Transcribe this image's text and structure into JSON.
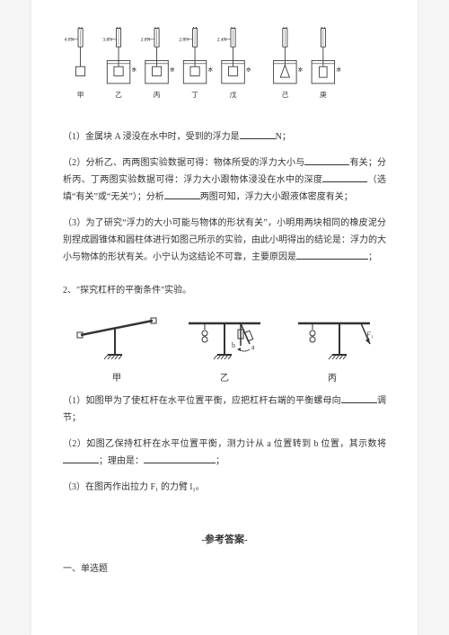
{
  "buoyancy_figure": {
    "units": [
      {
        "reading": "4.8N",
        "label": "甲",
        "has_water": false,
        "block": "rect"
      },
      {
        "reading": "3.8N",
        "label": "乙",
        "has_water": true,
        "block": "rect",
        "liquid_label": "水"
      },
      {
        "reading": "2.8N",
        "label": "丙",
        "has_water": true,
        "block": "rect",
        "liquid_label": "水"
      },
      {
        "reading": "2.8N",
        "label": "丁",
        "has_water": true,
        "block": "rect",
        "liquid_label": "水"
      },
      {
        "reading": "2.4N",
        "label": "戊",
        "has_water": true,
        "block": "rect",
        "liquid_label": "水"
      },
      {
        "reading": "",
        "label": "己",
        "has_water": true,
        "block": "cone",
        "liquid_label": "水"
      },
      {
        "reading": "",
        "label": "庚",
        "has_water": true,
        "block": "cyl",
        "liquid_label": "水"
      }
    ],
    "colors": {
      "line": "#555",
      "water": "#ffffff"
    }
  },
  "q1_1": {
    "text_a": "（1）金属块 A 浸没在水中时，受到的浮力是",
    "text_b": "N；"
  },
  "q1_2": {
    "text_a": "（2）分析乙、丙两图实验数据可得：物体所受的浮力大小与",
    "text_b": "有关；分析丙、丁两图实验数据可得：浮力大小跟物体浸没在水中的深度",
    "text_c": "（选填“有关”或“无关”）；分析",
    "text_d": "两图可知，浮力大小跟液体密度有关；"
  },
  "q1_3": {
    "text_a": "（3）为了研究“浮力的大小可能与物体的形状有关”，小明用两块相同的橡皮泥分别捏成圆锥体和圆柱体进行如图己所示的实验，由此小明得出的结论是：浮力的大小与物体的形状有关。小宁认为这结论不可靠，主要原因是",
    "text_b": "；"
  },
  "q2_title": "2、\"探究杠杆的平衡条件\"实验。",
  "lever_figure": {
    "labels": [
      "甲",
      "乙",
      "丙"
    ],
    "markers": {
      "a": "a",
      "b": "b",
      "F": "F₁"
    }
  },
  "q2_1": {
    "text_a": "（1）如图甲为了使杠杆在水平位置平衡，应把杠杆右端的平衡螺母向",
    "text_b": "调节；"
  },
  "q2_2": {
    "text_a": "（2）如图乙保持杠杆在水平位置平衡，测力计从 a 位置转到 b 位置，其示数将",
    "text_b": "；理由是：",
    "text_c": "；"
  },
  "q2_3": {
    "text": "（3）在图丙作出拉力 F₁ 的力臂 l₁。"
  },
  "answer_header": "-参考答案-",
  "answer_section": "一、单选题"
}
